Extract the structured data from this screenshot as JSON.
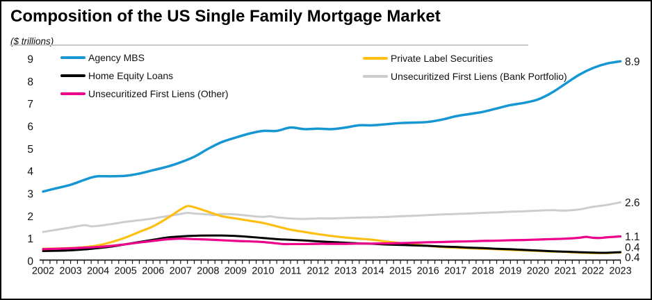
{
  "title": "Composition of the US Single Family Mortgage Market",
  "subtitle": "($ trillions)",
  "colors": {
    "agency_mbs": "#1696d2",
    "private_label": "#fdbf11",
    "home_equity": "#000000",
    "bank_portfolio": "#cdcdcd",
    "other_liens": "#ec008b",
    "axis": "#1a1a1a",
    "title_rule": "#c9c9c9"
  },
  "legend": {
    "col1": [
      {
        "label": "Agency MBS",
        "series": "agency_mbs"
      },
      {
        "label": "Home Equity Loans",
        "series": "home_equity"
      },
      {
        "label": "Unsecuritized First Liens (Other)",
        "series": "other_liens"
      }
    ],
    "col2": [
      {
        "label": "Private Label Securities",
        "series": "private_label"
      },
      {
        "label": "Unsecuritized First Liens (Bank Portfolio)",
        "series": "bank_portfolio"
      }
    ]
  },
  "chart_data": {
    "type": "line",
    "title": "Composition of the US Single Family Mortgage Market",
    "ylabel": "($ trillions)",
    "xlabel": "",
    "grid": false,
    "legend_position": "top",
    "ylim": [
      0,
      9
    ],
    "xlim": [
      2002,
      2023
    ],
    "y_ticks": [
      0,
      1,
      2,
      3,
      4,
      5,
      6,
      7,
      8,
      9
    ],
    "x_ticks": [
      2002,
      2003,
      2004,
      2005,
      2006,
      2007,
      2008,
      2009,
      2010,
      2011,
      2012,
      2013,
      2014,
      2015,
      2016,
      2017,
      2018,
      2019,
      2020,
      2021,
      2022,
      2023
    ],
    "x_minor_tick_interval": 0.25,
    "series": [
      {
        "name": "Unsecuritized First Liens (Bank Portfolio)",
        "key": "bank_portfolio",
        "color": "#cdcdcd",
        "width": 3,
        "end_label": "2.6",
        "end_value": 2.6,
        "points": [
          [
            2002,
            1.3
          ],
          [
            2002.5,
            1.4
          ],
          [
            2003,
            1.5
          ],
          [
            2003.5,
            1.6
          ],
          [
            2003.75,
            1.55
          ],
          [
            2004,
            1.57
          ],
          [
            2004.5,
            1.65
          ],
          [
            2005,
            1.75
          ],
          [
            2005.5,
            1.82
          ],
          [
            2006,
            1.9
          ],
          [
            2006.5,
            2.0
          ],
          [
            2007,
            2.1
          ],
          [
            2007.25,
            2.15
          ],
          [
            2007.5,
            2.12
          ],
          [
            2008,
            2.08
          ],
          [
            2008.25,
            2.05
          ],
          [
            2008.5,
            2.1
          ],
          [
            2009,
            2.08
          ],
          [
            2009.5,
            2.02
          ],
          [
            2010,
            1.97
          ],
          [
            2010.25,
            2.0
          ],
          [
            2010.5,
            1.95
          ],
          [
            2011,
            1.9
          ],
          [
            2011.5,
            1.88
          ],
          [
            2012,
            1.9
          ],
          [
            2012.5,
            1.9
          ],
          [
            2013,
            1.92
          ],
          [
            2013.5,
            1.94
          ],
          [
            2014,
            1.95
          ],
          [
            2014.5,
            1.97
          ],
          [
            2015,
            2.0
          ],
          [
            2015.5,
            2.02
          ],
          [
            2016,
            2.05
          ],
          [
            2016.5,
            2.08
          ],
          [
            2017,
            2.1
          ],
          [
            2017.5,
            2.12
          ],
          [
            2018,
            2.15
          ],
          [
            2018.5,
            2.17
          ],
          [
            2019,
            2.2
          ],
          [
            2019.5,
            2.22
          ],
          [
            2020,
            2.25
          ],
          [
            2020.5,
            2.27
          ],
          [
            2021,
            2.25
          ],
          [
            2021.5,
            2.3
          ],
          [
            2022,
            2.42
          ],
          [
            2022.5,
            2.5
          ],
          [
            2023,
            2.62
          ]
        ]
      },
      {
        "name": "Private Label Securities",
        "key": "private_label",
        "color": "#fdbf11",
        "width": 3.2,
        "end_label": "0.4",
        "end_value": 0.4,
        "points": [
          [
            2002,
            0.55
          ],
          [
            2002.5,
            0.56
          ],
          [
            2003,
            0.58
          ],
          [
            2003.5,
            0.62
          ],
          [
            2004,
            0.7
          ],
          [
            2004.5,
            0.85
          ],
          [
            2005,
            1.05
          ],
          [
            2005.5,
            1.3
          ],
          [
            2006,
            1.55
          ],
          [
            2006.5,
            1.9
          ],
          [
            2007,
            2.3
          ],
          [
            2007.25,
            2.45
          ],
          [
            2007.5,
            2.4
          ],
          [
            2008,
            2.2
          ],
          [
            2008.5,
            2.0
          ],
          [
            2009,
            1.9
          ],
          [
            2009.5,
            1.8
          ],
          [
            2010,
            1.7
          ],
          [
            2010.5,
            1.55
          ],
          [
            2011,
            1.4
          ],
          [
            2011.5,
            1.3
          ],
          [
            2012,
            1.2
          ],
          [
            2012.5,
            1.12
          ],
          [
            2013,
            1.05
          ],
          [
            2013.5,
            1.0
          ],
          [
            2014,
            0.95
          ],
          [
            2014.5,
            0.87
          ],
          [
            2015,
            0.8
          ],
          [
            2015.5,
            0.74
          ],
          [
            2016,
            0.68
          ],
          [
            2016.5,
            0.63
          ],
          [
            2017,
            0.6
          ],
          [
            2017.5,
            0.57
          ],
          [
            2018,
            0.55
          ],
          [
            2018.5,
            0.53
          ],
          [
            2019,
            0.5
          ],
          [
            2019.5,
            0.48
          ],
          [
            2020,
            0.45
          ],
          [
            2020.5,
            0.43
          ],
          [
            2021,
            0.41
          ],
          [
            2021.5,
            0.38
          ],
          [
            2022,
            0.36
          ],
          [
            2022.5,
            0.36
          ],
          [
            2023,
            0.39
          ]
        ]
      },
      {
        "name": "Home Equity Loans",
        "key": "home_equity",
        "color": "#000000",
        "width": 3,
        "end_label": "0.4",
        "end_value": 0.4,
        "points": [
          [
            2002,
            0.45
          ],
          [
            2002.5,
            0.46
          ],
          [
            2003,
            0.48
          ],
          [
            2003.5,
            0.52
          ],
          [
            2004,
            0.58
          ],
          [
            2004.5,
            0.65
          ],
          [
            2005,
            0.75
          ],
          [
            2005.5,
            0.85
          ],
          [
            2006,
            0.95
          ],
          [
            2006.5,
            1.05
          ],
          [
            2007,
            1.1
          ],
          [
            2007.5,
            1.13
          ],
          [
            2008,
            1.14
          ],
          [
            2008.5,
            1.14
          ],
          [
            2009,
            1.12
          ],
          [
            2009.5,
            1.08
          ],
          [
            2010,
            1.03
          ],
          [
            2010.5,
            0.98
          ],
          [
            2011,
            0.95
          ],
          [
            2011.5,
            0.92
          ],
          [
            2012,
            0.88
          ],
          [
            2012.5,
            0.85
          ],
          [
            2013,
            0.82
          ],
          [
            2013.5,
            0.79
          ],
          [
            2014,
            0.77
          ],
          [
            2014.5,
            0.74
          ],
          [
            2015,
            0.72
          ],
          [
            2015.5,
            0.7
          ],
          [
            2016,
            0.68
          ],
          [
            2016.5,
            0.65
          ],
          [
            2017,
            0.63
          ],
          [
            2017.5,
            0.6
          ],
          [
            2018,
            0.58
          ],
          [
            2018.5,
            0.55
          ],
          [
            2019,
            0.53
          ],
          [
            2019.5,
            0.5
          ],
          [
            2020,
            0.47
          ],
          [
            2020.5,
            0.44
          ],
          [
            2021,
            0.42
          ],
          [
            2021.5,
            0.4
          ],
          [
            2022,
            0.38
          ],
          [
            2022.5,
            0.37
          ],
          [
            2023,
            0.4
          ]
        ]
      },
      {
        "name": "Unsecuritized First Liens (Other)",
        "key": "other_liens",
        "color": "#ec008b",
        "width": 3.2,
        "end_label": "1.1",
        "end_value": 1.1,
        "points": [
          [
            2002,
            0.53
          ],
          [
            2002.5,
            0.55
          ],
          [
            2003,
            0.57
          ],
          [
            2003.5,
            0.6
          ],
          [
            2004,
            0.63
          ],
          [
            2004.5,
            0.68
          ],
          [
            2005,
            0.75
          ],
          [
            2005.5,
            0.83
          ],
          [
            2006,
            0.9
          ],
          [
            2006.5,
            0.97
          ],
          [
            2007,
            1.0
          ],
          [
            2007.5,
            0.98
          ],
          [
            2008,
            0.96
          ],
          [
            2008.5,
            0.93
          ],
          [
            2009,
            0.9
          ],
          [
            2009.5,
            0.88
          ],
          [
            2010,
            0.85
          ],
          [
            2010.5,
            0.79
          ],
          [
            2010.75,
            0.76
          ],
          [
            2011,
            0.76
          ],
          [
            2011.5,
            0.76
          ],
          [
            2012,
            0.77
          ],
          [
            2012.5,
            0.77
          ],
          [
            2013,
            0.77
          ],
          [
            2013.5,
            0.78
          ],
          [
            2014,
            0.78
          ],
          [
            2014.5,
            0.79
          ],
          [
            2015,
            0.8
          ],
          [
            2015.5,
            0.82
          ],
          [
            2016,
            0.84
          ],
          [
            2016.5,
            0.85
          ],
          [
            2017,
            0.87
          ],
          [
            2017.5,
            0.88
          ],
          [
            2018,
            0.9
          ],
          [
            2018.5,
            0.91
          ],
          [
            2019,
            0.93
          ],
          [
            2019.5,
            0.94
          ],
          [
            2020,
            0.96
          ],
          [
            2020.5,
            0.98
          ],
          [
            2021,
            1.0
          ],
          [
            2021.5,
            1.04
          ],
          [
            2021.75,
            1.08
          ],
          [
            2022,
            1.04
          ],
          [
            2022.25,
            1.03
          ],
          [
            2022.5,
            1.06
          ],
          [
            2023,
            1.1
          ]
        ]
      },
      {
        "name": "Agency MBS",
        "key": "agency_mbs",
        "color": "#1696d2",
        "width": 3.5,
        "end_label": "8.9",
        "end_value": 8.9,
        "points": [
          [
            2002,
            3.1
          ],
          [
            2002.5,
            3.25
          ],
          [
            2003,
            3.4
          ],
          [
            2003.5,
            3.62
          ],
          [
            2003.75,
            3.72
          ],
          [
            2004,
            3.78
          ],
          [
            2004.5,
            3.78
          ],
          [
            2005,
            3.8
          ],
          [
            2005.5,
            3.9
          ],
          [
            2006,
            4.05
          ],
          [
            2006.5,
            4.2
          ],
          [
            2007,
            4.4
          ],
          [
            2007.5,
            4.65
          ],
          [
            2008,
            5.0
          ],
          [
            2008.5,
            5.3
          ],
          [
            2009,
            5.5
          ],
          [
            2009.5,
            5.68
          ],
          [
            2010,
            5.8
          ],
          [
            2010.5,
            5.8
          ],
          [
            2011,
            5.95
          ],
          [
            2011.5,
            5.88
          ],
          [
            2012,
            5.9
          ],
          [
            2012.5,
            5.88
          ],
          [
            2013,
            5.95
          ],
          [
            2013.5,
            6.05
          ],
          [
            2014,
            6.05
          ],
          [
            2014.5,
            6.1
          ],
          [
            2015,
            6.15
          ],
          [
            2015.5,
            6.17
          ],
          [
            2016,
            6.2
          ],
          [
            2016.5,
            6.3
          ],
          [
            2017,
            6.45
          ],
          [
            2017.5,
            6.55
          ],
          [
            2018,
            6.65
          ],
          [
            2018.5,
            6.8
          ],
          [
            2019,
            6.95
          ],
          [
            2019.5,
            7.05
          ],
          [
            2020,
            7.2
          ],
          [
            2020.5,
            7.5
          ],
          [
            2021,
            7.9
          ],
          [
            2021.5,
            8.3
          ],
          [
            2022,
            8.6
          ],
          [
            2022.5,
            8.8
          ],
          [
            2023,
            8.9
          ]
        ]
      }
    ]
  }
}
